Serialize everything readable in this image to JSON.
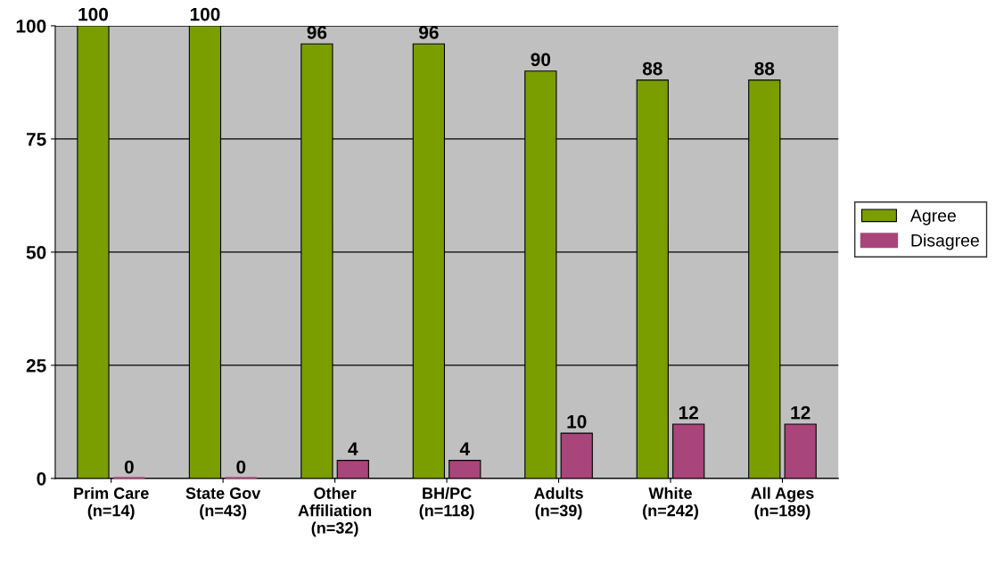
{
  "chart_data": {
    "type": "bar",
    "categories": [
      "Prim Care\n(n=14)",
      "State Gov\n(n=43)",
      "Other\nAffiliation\n(n=32)",
      "BH/PC\n(n=118)",
      "Adults\n(n=39)",
      "White\n(n=242)",
      "All Ages\n(n=189)"
    ],
    "series": [
      {
        "name": "Agree",
        "color": "#7a9e00",
        "values": [
          100,
          100,
          96,
          96,
          90,
          88,
          88
        ]
      },
      {
        "name": "Disagree",
        "color": "#a8457a",
        "values": [
          0,
          0,
          4,
          4,
          10,
          12,
          12
        ]
      }
    ],
    "ylim": [
      0,
      100
    ],
    "yticks": [
      0,
      25,
      50,
      75,
      100
    ],
    "grid": "y",
    "legend": "right",
    "data_labels": true
  }
}
